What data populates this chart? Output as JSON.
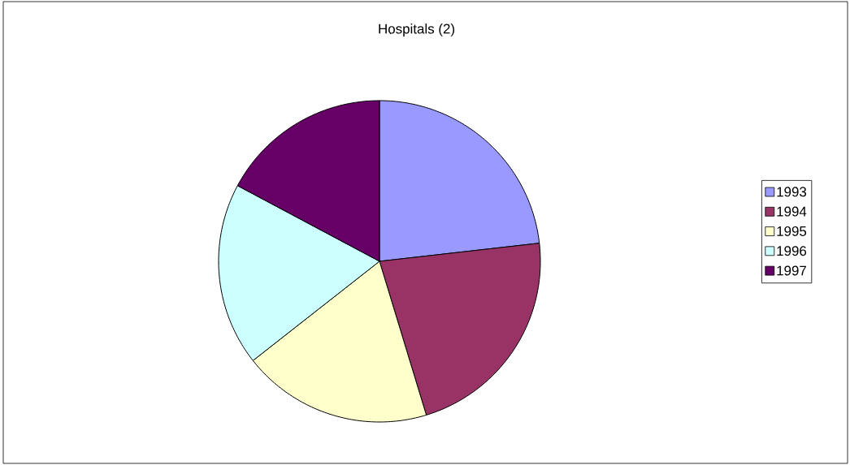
{
  "chart_data": {
    "type": "pie",
    "title": "Hospitals (2)",
    "categories": [
      "1993",
      "1994",
      "1995",
      "1996",
      "1997"
    ],
    "values": [
      23.2,
      22.1,
      19.1,
      18.4,
      17.2
    ],
    "colors": [
      "#9999ff",
      "#993366",
      "#ffffcc",
      "#ccffff",
      "#660066"
    ],
    "legend": "right"
  }
}
